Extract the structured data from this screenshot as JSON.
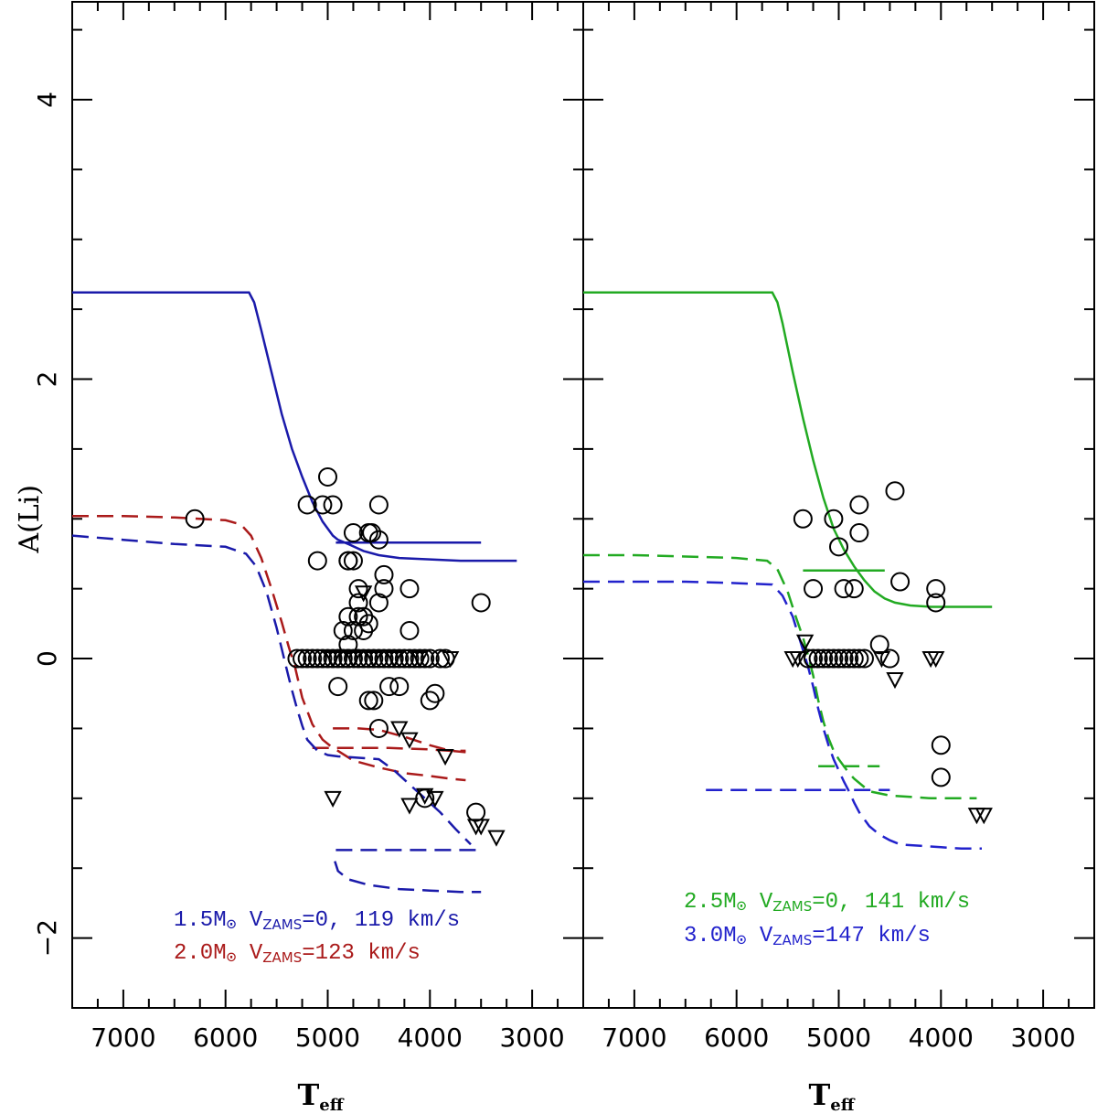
{
  "chart_data": [
    {
      "type": "line",
      "panel": "left",
      "xlabel": "T",
      "xlabel_sub": "eff",
      "ylabel": "A(Li)",
      "xlim": [
        7500,
        2500
      ],
      "ylim": [
        -2.5,
        4.7
      ],
      "x_ticks": [
        "7000",
        "6000",
        "5000",
        "4000",
        "3000"
      ],
      "y_ticks": [
        "4",
        "2",
        "0",
        "−2"
      ],
      "legend": [
        {
          "color": "#1a1aaa",
          "mass": "1.5M",
          "sub": "ZAMS",
          "text_before": "V",
          "text_after": "=0, 119 km/s"
        },
        {
          "color": "#aa1a1a",
          "mass": "2.0M",
          "sub": "ZAMS",
          "text_before": "V",
          "text_after": "=123 km/s"
        }
      ],
      "series": [
        {
          "name": "1.5M V=0 main",
          "color": "#1a1aaa",
          "dash": "solid",
          "x": [
            7500,
            7000,
            6500,
            6000,
            5770,
            5720,
            5650,
            5550,
            5450,
            5350,
            5250,
            5150,
            5050,
            4950,
            4900,
            4800,
            4650,
            4500,
            4300,
            4000,
            3700,
            3500,
            3300,
            3150
          ],
          "y": [
            2.62,
            2.62,
            2.62,
            2.62,
            2.62,
            2.55,
            2.35,
            2.05,
            1.75,
            1.5,
            1.3,
            1.12,
            0.98,
            0.88,
            0.85,
            0.82,
            0.77,
            0.74,
            0.72,
            0.71,
            0.7,
            0.7,
            0.7,
            0.7
          ]
        },
        {
          "name": "1.5M V=0 branch",
          "color": "#1a1aaa",
          "dash": "solid",
          "x": [
            4920,
            4500,
            4000,
            3500
          ],
          "y": [
            0.83,
            0.83,
            0.83,
            0.83
          ]
        },
        {
          "name": "2.0M V=123",
          "color": "#aa1a1a",
          "dash": "dashed",
          "x": [
            7500,
            7000,
            6500,
            6000,
            5850,
            5750,
            5650,
            5550,
            5450,
            5380,
            5320,
            5250,
            5150,
            5050,
            4950,
            4900,
            4750,
            4500,
            4250,
            4000,
            3800,
            3650
          ],
          "y": [
            1.02,
            1.02,
            1.01,
            0.99,
            0.96,
            0.88,
            0.72,
            0.5,
            0.26,
            0.08,
            -0.06,
            -0.28,
            -0.47,
            -0.58,
            -0.64,
            -0.66,
            -0.73,
            -0.78,
            -0.82,
            -0.84,
            -0.86,
            -0.87
          ]
        },
        {
          "name": "2.0M branch a",
          "color": "#aa1a1a",
          "dash": "dashed",
          "x": [
            4950,
            4700,
            4500,
            4250,
            4000,
            3800,
            3650
          ],
          "y": [
            -0.5,
            -0.5,
            -0.51,
            -0.56,
            -0.62,
            -0.66,
            -0.67
          ]
        },
        {
          "name": "2.0M branch b",
          "color": "#aa1a1a",
          "dash": "dashed",
          "x": [
            5150,
            4800,
            4400,
            4000,
            3800,
            3650
          ],
          "y": [
            -0.64,
            -0.64,
            -0.64,
            -0.65,
            -0.66,
            -0.66
          ]
        },
        {
          "name": "1.5M V=119",
          "color": "#1a1aaa",
          "dash": "dashed",
          "x": [
            7500,
            7000,
            6500,
            6000,
            5800,
            5700,
            5600,
            5500,
            5420,
            5360,
            5300,
            5250,
            5200,
            5100,
            5000,
            4900,
            4700,
            4500,
            4350,
            4200,
            4050,
            3900,
            3750,
            3600
          ],
          "y": [
            0.88,
            0.85,
            0.82,
            0.8,
            0.75,
            0.66,
            0.48,
            0.22,
            -0.02,
            -0.2,
            -0.36,
            -0.48,
            -0.58,
            -0.66,
            -0.69,
            -0.7,
            -0.71,
            -0.72,
            -0.8,
            -0.9,
            -1.0,
            -1.1,
            -1.22,
            -1.33
          ]
        },
        {
          "name": "1.5M V=119 branch a",
          "color": "#1a1aaa",
          "dash": "dashed",
          "x": [
            4920,
            4500,
            4000,
            3500
          ],
          "y": [
            -1.37,
            -1.37,
            -1.37,
            -1.37
          ]
        },
        {
          "name": "1.5M V=119 branch b",
          "color": "#1a1aaa",
          "dash": "dashed",
          "x": [
            4930,
            4900,
            4800,
            4600,
            4300,
            4000,
            3700,
            3500
          ],
          "y": [
            -1.45,
            -1.52,
            -1.58,
            -1.62,
            -1.65,
            -1.66,
            -1.67,
            -1.67
          ]
        }
      ],
      "circles": {
        "x": [
          6300,
          5000,
          5200,
          5050,
          4950,
          4500,
          4750,
          4600,
          4570,
          4800,
          5100,
          4800,
          4750,
          4450,
          4700,
          4450,
          4200,
          4700,
          4650,
          4500,
          4700,
          4800,
          4600,
          4650,
          4750,
          4850,
          4800,
          4200,
          4900,
          4500,
          4800,
          4400,
          4300,
          3950,
          4000,
          4600,
          4550,
          4500,
          4050,
          3550,
          3500,
          5300,
          5250,
          5200,
          5150,
          5100,
          5050,
          5000,
          4950,
          4900,
          4850,
          4800,
          4750,
          4700,
          4650,
          4600,
          4550,
          4500,
          4450,
          4400,
          4350,
          4300,
          4250,
          4200,
          4150,
          4100,
          4050,
          4000,
          3900,
          3850
        ],
        "y": [
          1.0,
          1.3,
          1.1,
          1.1,
          1.1,
          1.1,
          0.9,
          0.9,
          0.9,
          0.7,
          0.7,
          0.7,
          0.7,
          0.6,
          0.5,
          0.5,
          0.5,
          0.4,
          0.3,
          0.4,
          0.3,
          0.3,
          0.25,
          0.2,
          0.2,
          0.2,
          0.1,
          0.2,
          -0.2,
          -0.5,
          0.0,
          -0.2,
          -0.2,
          -0.25,
          -0.3,
          -0.3,
          -0.3,
          0.85,
          -1.0,
          -1.1,
          0.4,
          0.0,
          0.0,
          0.0,
          0.0,
          0.0,
          0.0,
          0.0,
          0.0,
          0.0,
          0.0,
          0.0,
          0.0,
          0.0,
          0.0,
          0.0,
          0.0,
          0.0,
          0.0,
          0.0,
          0.0,
          0.0,
          0.0,
          0.0,
          0.0,
          0.0,
          0.0,
          0.0,
          0.0,
          0.0
        ]
      },
      "triangles": {
        "x": [
          4650,
          4300,
          4200,
          3850,
          4950,
          4200,
          4050,
          3950,
          3550,
          3500,
          3350,
          4950,
          4750,
          4550,
          4350,
          4100,
          3800
        ],
        "y": [
          0.47,
          -0.5,
          -0.58,
          -0.7,
          -1.0,
          -1.05,
          -0.98,
          -1.0,
          -1.2,
          -1.2,
          -1.28,
          0.0,
          0.0,
          0.0,
          0.0,
          0.0,
          0.0
        ]
      }
    },
    {
      "type": "line",
      "panel": "right",
      "xlabel": "T",
      "xlabel_sub": "eff",
      "ylabel": "",
      "xlim": [
        7500,
        2500
      ],
      "ylim": [
        -2.5,
        4.7
      ],
      "x_ticks": [
        "7000",
        "6000",
        "5000",
        "4000",
        "3000"
      ],
      "y_ticks": [],
      "legend": [
        {
          "color": "#22aa22",
          "mass": "2.5M",
          "sub": "ZAMS",
          "text_before": "V",
          "text_after": "=0, 141 km/s"
        },
        {
          "color": "#2222cc",
          "mass": "3.0M",
          "sub": "ZAMS",
          "text_before": "V",
          "text_after": "=147 km/s"
        }
      ],
      "series": [
        {
          "name": "2.5M V=0 main",
          "color": "#22aa22",
          "dash": "solid",
          "x": [
            7500,
            7000,
            6500,
            6000,
            5650,
            5600,
            5550,
            5450,
            5350,
            5250,
            5150,
            5050,
            4950,
            4850,
            4750,
            4650,
            4550,
            4450,
            4300,
            4100,
            3900,
            3700,
            3500
          ],
          "y": [
            2.62,
            2.62,
            2.62,
            2.62,
            2.62,
            2.55,
            2.4,
            2.05,
            1.72,
            1.42,
            1.15,
            0.93,
            0.78,
            0.66,
            0.56,
            0.48,
            0.43,
            0.4,
            0.38,
            0.37,
            0.37,
            0.37,
            0.37
          ]
        },
        {
          "name": "2.5M V=0 branch",
          "color": "#22aa22",
          "dash": "solid",
          "x": [
            5350,
            5000,
            4700,
            4550
          ],
          "y": [
            0.63,
            0.63,
            0.63,
            0.63
          ]
        },
        {
          "name": "2.5M V=141",
          "color": "#22aa22",
          "dash": "dashed",
          "x": [
            7500,
            7000,
            6500,
            6000,
            5700,
            5600,
            5500,
            5420,
            5350,
            5300,
            5250,
            5200,
            5150,
            5100,
            5050,
            5000,
            4950,
            4900,
            4850,
            4800,
            4750,
            4700,
            4500,
            4300,
            4100,
            3900,
            3650
          ],
          "y": [
            0.74,
            0.74,
            0.73,
            0.72,
            0.7,
            0.64,
            0.48,
            0.3,
            0.15,
            0.02,
            -0.12,
            -0.3,
            -0.45,
            -0.57,
            -0.66,
            -0.72,
            -0.77,
            -0.82,
            -0.86,
            -0.89,
            -0.92,
            -0.95,
            -0.98,
            -0.99,
            -1.0,
            -1.0,
            -1.0
          ]
        },
        {
          "name": "2.5M V=141 branch",
          "color": "#22aa22",
          "dash": "dashed",
          "x": [
            5200,
            4900,
            4600
          ],
          "y": [
            -0.77,
            -0.77,
            -0.77
          ]
        },
        {
          "name": "3.0M V=147",
          "color": "#2222cc",
          "dash": "dashed",
          "x": [
            7500,
            7000,
            6500,
            6000,
            5650,
            5550,
            5450,
            5400,
            5350,
            5300,
            5250,
            5200,
            5150,
            5100,
            5050,
            5000,
            4950,
            4900,
            4850,
            4800,
            4700,
            4600,
            4500,
            4400,
            4200,
            4000,
            3800,
            3600
          ],
          "y": [
            0.55,
            0.55,
            0.55,
            0.54,
            0.53,
            0.45,
            0.3,
            0.18,
            0.06,
            -0.06,
            -0.2,
            -0.36,
            -0.5,
            -0.62,
            -0.72,
            -0.8,
            -0.88,
            -0.95,
            -1.03,
            -1.1,
            -1.2,
            -1.26,
            -1.3,
            -1.33,
            -1.34,
            -1.35,
            -1.36,
            -1.36
          ]
        },
        {
          "name": "3.0M branch",
          "color": "#2222cc",
          "dash": "dashed",
          "x": [
            6300,
            5800,
            5300,
            4800,
            4500
          ],
          "y": [
            -0.94,
            -0.94,
            -0.94,
            -0.94,
            -0.94
          ]
        }
      ],
      "circles": {
        "x": [
          5350,
          5050,
          4800,
          4800,
          4450,
          5000,
          4400,
          5250,
          4950,
          4850,
          4050,
          4050,
          4000,
          4000,
          4600,
          5300,
          5250,
          5200,
          5150,
          5100,
          5050,
          5000,
          4950,
          4900,
          4850,
          4800,
          4750,
          4500
        ],
        "y": [
          1.0,
          1.0,
          1.1,
          0.9,
          1.2,
          0.8,
          0.55,
          0.5,
          0.5,
          0.5,
          0.5,
          0.4,
          -0.62,
          -0.85,
          0.1,
          0.0,
          0.0,
          0.0,
          0.0,
          0.0,
          0.0,
          0.0,
          0.0,
          0.0,
          0.0,
          0.0,
          0.0,
          0.0
        ]
      },
      "triangles": {
        "x": [
          5330,
          5450,
          5400,
          4580,
          4450,
          4100,
          4050,
          3650,
          3580
        ],
        "y": [
          0.12,
          0.0,
          0.0,
          0.0,
          -0.15,
          0.0,
          0.0,
          -1.12,
          -1.12
        ]
      }
    }
  ]
}
